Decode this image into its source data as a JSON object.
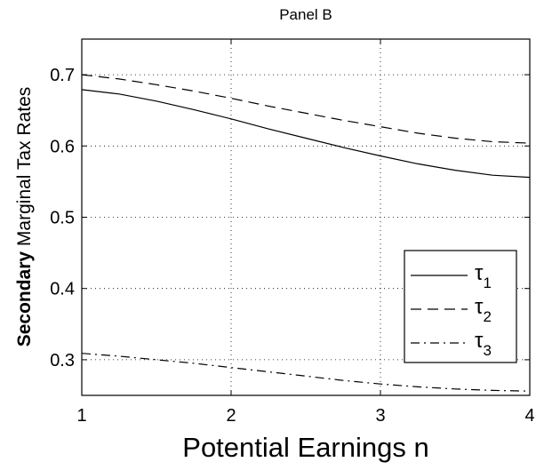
{
  "chart_data": {
    "type": "line",
    "title": "Panel B",
    "xlabel": "Potential Earnings n",
    "ylabel_bold": "Secondary",
    "ylabel_rest": " Marginal Tax Rates",
    "xlim": [
      1,
      4
    ],
    "ylim": [
      0.25,
      0.75
    ],
    "xticks": [
      1,
      2,
      3,
      4
    ],
    "yticks": [
      0.3,
      0.4,
      0.5,
      0.6,
      0.7
    ],
    "xtick_labels": [
      "1",
      "2",
      "3",
      "4"
    ],
    "ytick_labels": [
      "0.3",
      "0.4",
      "0.5",
      "0.6",
      "0.7"
    ],
    "grid": true,
    "legend_position": "bottom-right",
    "series": [
      {
        "name": "τ1",
        "base": "τ",
        "sub": "1",
        "style": "solid",
        "x": [
          1.0,
          1.25,
          1.5,
          1.75,
          2.0,
          2.25,
          2.5,
          2.75,
          3.0,
          3.25,
          3.5,
          3.75,
          4.0
        ],
        "y": [
          0.679,
          0.673,
          0.663,
          0.651,
          0.638,
          0.624,
          0.611,
          0.598,
          0.586,
          0.575,
          0.566,
          0.559,
          0.556
        ]
      },
      {
        "name": "τ2",
        "base": "τ",
        "sub": "2",
        "style": "dashed",
        "x": [
          1.0,
          1.25,
          1.5,
          1.75,
          2.0,
          2.25,
          2.5,
          2.75,
          3.0,
          3.25,
          3.5,
          3.75,
          4.0
        ],
        "y": [
          0.7,
          0.694,
          0.686,
          0.677,
          0.667,
          0.656,
          0.646,
          0.636,
          0.627,
          0.618,
          0.611,
          0.606,
          0.604
        ]
      },
      {
        "name": "τ3",
        "base": "τ",
        "sub": "3",
        "style": "dashdot",
        "x": [
          1.0,
          1.25,
          1.5,
          1.75,
          2.0,
          2.25,
          2.5,
          2.75,
          3.0,
          3.25,
          3.5,
          3.75,
          4.0
        ],
        "y": [
          0.309,
          0.305,
          0.3,
          0.295,
          0.289,
          0.283,
          0.277,
          0.271,
          0.266,
          0.262,
          0.259,
          0.257,
          0.256
        ]
      }
    ]
  }
}
